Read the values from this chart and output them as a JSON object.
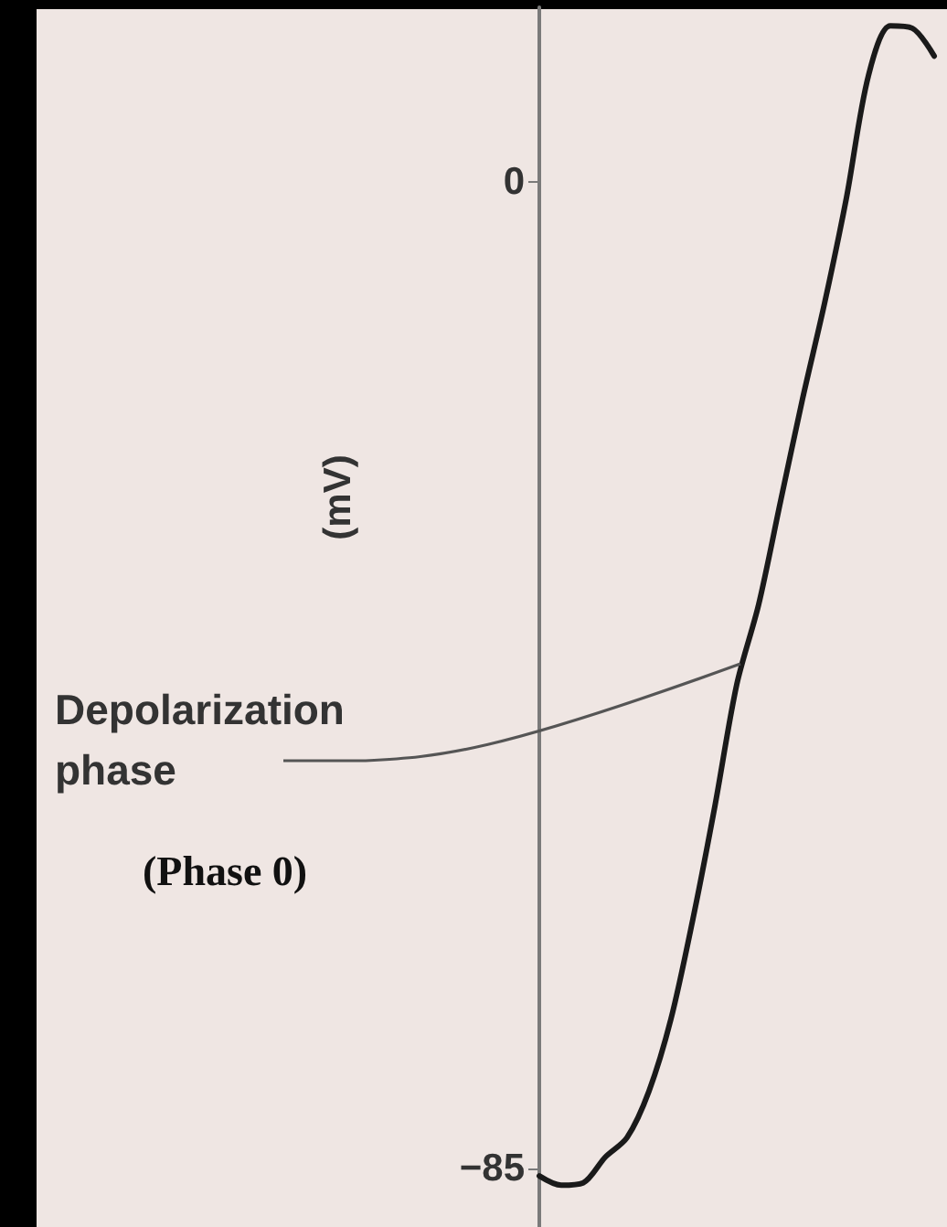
{
  "chart_data": {
    "type": "line",
    "ylabel": "(mV)",
    "categories": [
      null,
      null,
      null,
      null,
      null,
      null,
      null,
      null,
      null,
      null,
      null,
      null,
      null,
      null,
      null,
      null,
      null,
      null,
      null
    ],
    "series": [
      {
        "color": "#1a1a1a",
        "values": [
          -85.6,
          -86.4,
          -86.2,
          -84.0,
          -82.3,
          -78.3,
          -72.1,
          -63.5,
          -53.8,
          -43.3,
          -36.4,
          -27.5,
          -18.7,
          -10.5,
          -1.4,
          9.1,
          13.4,
          13.2,
          10.8
        ]
      }
    ],
    "ylim": [
      -90,
      15
    ],
    "yticks": [
      0,
      {
        "value": -85,
        "label": "−85"
      }
    ],
    "annotations": [
      "Depolarization phase",
      "(Phase 0)"
    ],
    "grid": false,
    "marker": "none",
    "line_style": "solid",
    "tick_labels": "y"
  }
}
